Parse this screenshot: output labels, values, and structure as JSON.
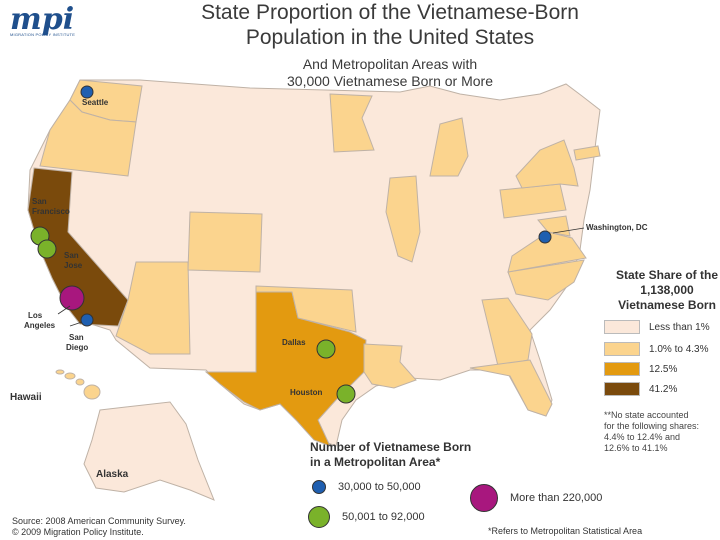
{
  "logo": {
    "mark": "mpi",
    "sub": "MIGRATION POLICY INSTITUTE"
  },
  "title_line1": "State Proportion of the Vietnamese-Born",
  "title_line2": "Population in the United States",
  "subtitle_line1": "And Metropolitan Areas with",
  "subtitle_line2": "30,000 Vietnamese Born or More",
  "colors": {
    "less_than_1": "#fbe8da",
    "one_to_4_3": "#fbd48e",
    "twelve_5": "#e39a10",
    "forty_one_2": "#7a4a0c",
    "metro_small": "#1f5fb0",
    "metro_medium": "#7ab22a",
    "metro_large": "#a8177e"
  },
  "state_legend": {
    "title_line1": "State Share of the",
    "title_line2": "1,138,000",
    "title_line3": "Vietnamese Born",
    "items": [
      {
        "label": "Less than 1%",
        "color": "#fbe8da"
      },
      {
        "label": "1.0% to 4.3%",
        "color": "#fbd48e"
      },
      {
        "label": "12.5%",
        "color": "#e39a10"
      },
      {
        "label": "41.2%",
        "color": "#7a4a0c"
      }
    ],
    "note_line1": "**No state accounted",
    "note_line2": "for the following shares:",
    "note_line3": "4.4% to 12.4% and",
    "note_line4": "12.6% to 41.1%"
  },
  "metro_legend": {
    "title_line1": "Number of Vietnamese Born",
    "title_line2": "in a Metropolitan Area*",
    "small": "30,000 to 50,000",
    "medium": "50,001 to 92,000",
    "large": "More than 220,000"
  },
  "places": {
    "seattle": "Seattle",
    "san_francisco_1": "San",
    "san_francisco_2": "Francisco",
    "san_jose_1": "San",
    "san_jose_2": "Jose",
    "los_angeles_1": "Los",
    "los_angeles_2": "Angeles",
    "san_diego_1": "San",
    "san_diego_2": "Diego",
    "dallas": "Dallas",
    "houston": "Houston",
    "washington_dc": "Washington, DC",
    "hawaii": "Hawaii",
    "alaska": "Alaska"
  },
  "source_line1": "Source: 2008 American Community Survey.",
  "source_line2": "© 2009 Migration Policy Institute.",
  "footnote": "*Refers to Metropolitan Statistical Area"
}
